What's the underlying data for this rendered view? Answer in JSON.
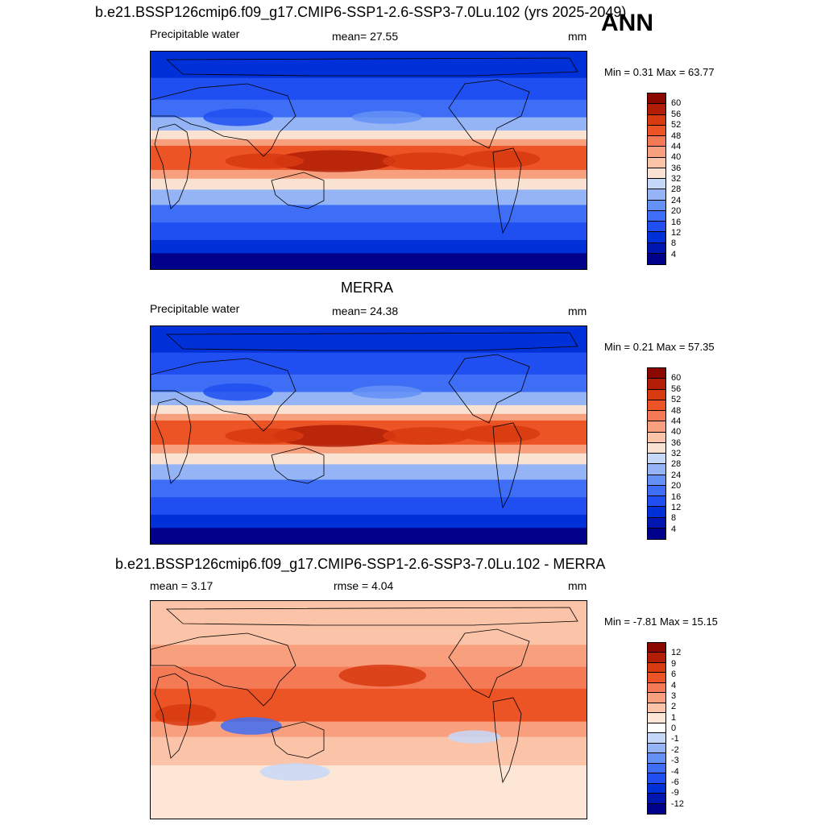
{
  "annotation": "ANN",
  "panels": [
    {
      "title": "b.e21.BSSP126cmip6.f09_g17.CMIP6-SSP1-2.6-SSP3-7.0Lu.102 (yrs 2025-2049)",
      "left_label": "Precipitable water",
      "center_label": "mean=  27.55",
      "units": "mm",
      "minmax": "Min =   0.31 Max =  63.77",
      "palette": "abs"
    },
    {
      "title": "MERRA",
      "left_label": "Precipitable water",
      "center_label": "mean=  24.38",
      "units": "mm",
      "minmax": "Min =   0.21 Max =  57.35",
      "palette": "abs"
    },
    {
      "title": "b.e21.BSSP126cmip6.f09_g17.CMIP6-SSP1-2.6-SSP3-7.0Lu.102 - MERRA",
      "left_label": "mean =   3.17",
      "center_label": "rmse =   4.04",
      "units": "mm",
      "minmax": "Min =  -7.81 Max =  15.15",
      "palette": "diff"
    }
  ],
  "chart_data": [
    {
      "type": "heatmap",
      "title": "b.e21.BSSP126cmip6.f09_g17.CMIP6-SSP1-2.6-SSP3-7.0Lu.102 (yrs 2025-2049)",
      "variable": "Precipitable water",
      "units": "mm",
      "mean": 27.55,
      "min": 0.31,
      "max": 63.77,
      "colorbar_levels": [
        4,
        8,
        12,
        16,
        20,
        24,
        28,
        32,
        36,
        40,
        44,
        48,
        52,
        56,
        60
      ]
    },
    {
      "type": "heatmap",
      "title": "MERRA",
      "variable": "Precipitable water",
      "units": "mm",
      "mean": 24.38,
      "min": 0.21,
      "max": 57.35,
      "colorbar_levels": [
        4,
        8,
        12,
        16,
        20,
        24,
        28,
        32,
        36,
        40,
        44,
        48,
        52,
        56,
        60
      ]
    },
    {
      "type": "heatmap",
      "title": "b.e21.BSSP126cmip6.f09_g17.CMIP6-SSP1-2.6-SSP3-7.0Lu.102 - MERRA",
      "units": "mm",
      "mean": 3.17,
      "rmse": 4.04,
      "min": -7.81,
      "max": 15.15,
      "colorbar_levels": [
        -12,
        -9,
        -6,
        -4,
        -3,
        -2,
        -1,
        0,
        1,
        2,
        3,
        4,
        6,
        9,
        12
      ]
    }
  ],
  "colors": {
    "abs": [
      "#00008a",
      "#0016b0",
      "#0030d8",
      "#1f4ff0",
      "#3d6ef5",
      "#6491f5",
      "#94b4f5",
      "#c6d8f8",
      "#f9e2d2",
      "#fbc4a8",
      "#f8a07e",
      "#f47a55",
      "#ec5426",
      "#d83a10",
      "#b21e05",
      "#8a0800"
    ],
    "diff": [
      "#00008a",
      "#0016b0",
      "#0030d8",
      "#1f4ff0",
      "#3d6ef5",
      "#6491f5",
      "#94b4f5",
      "#c6d8f8",
      "#ffffff",
      "#fde6d6",
      "#fbc4a8",
      "#f8a07e",
      "#f47a55",
      "#ec5426",
      "#d83a10",
      "#b21e05",
      "#8a0800"
    ]
  }
}
